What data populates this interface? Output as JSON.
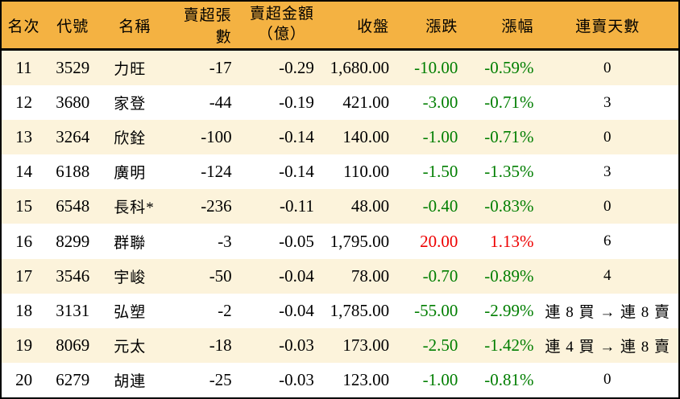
{
  "table": {
    "title": "institutional-net-sell-ranking",
    "columns": {
      "rank": "名次",
      "code": "代號",
      "name": "名稱",
      "sell_volume": "賣超張數",
      "sell_amount_line1": "賣超金額",
      "sell_amount_line2": "（億）",
      "close": "收盤",
      "change": "漲跌",
      "change_pct": "漲幅",
      "streak": "連賣天數"
    },
    "rows": [
      {
        "rank": "11",
        "code": "3529",
        "name": "力旺",
        "sell_volume": "-17",
        "sell_amount": "-0.29",
        "close": "1,680.00",
        "change": "-10.00",
        "change_pct": "-0.59%",
        "streak": "0",
        "trend": "down"
      },
      {
        "rank": "12",
        "code": "3680",
        "name": "家登",
        "sell_volume": "-44",
        "sell_amount": "-0.19",
        "close": "421.00",
        "change": "-3.00",
        "change_pct": "-0.71%",
        "streak": "3",
        "trend": "down"
      },
      {
        "rank": "13",
        "code": "3264",
        "name": "欣銓",
        "sell_volume": "-100",
        "sell_amount": "-0.14",
        "close": "140.00",
        "change": "-1.00",
        "change_pct": "-0.71%",
        "streak": "0",
        "trend": "down"
      },
      {
        "rank": "14",
        "code": "6188",
        "name": "廣明",
        "sell_volume": "-124",
        "sell_amount": "-0.14",
        "close": "110.00",
        "change": "-1.50",
        "change_pct": "-1.35%",
        "streak": "3",
        "trend": "down"
      },
      {
        "rank": "15",
        "code": "6548",
        "name": "長科*",
        "sell_volume": "-236",
        "sell_amount": "-0.11",
        "close": "48.00",
        "change": "-0.40",
        "change_pct": "-0.83%",
        "streak": "0",
        "trend": "down"
      },
      {
        "rank": "16",
        "code": "8299",
        "name": "群聯",
        "sell_volume": "-3",
        "sell_amount": "-0.05",
        "close": "1,795.00",
        "change": "20.00",
        "change_pct": "1.13%",
        "streak": "6",
        "trend": "up"
      },
      {
        "rank": "17",
        "code": "3546",
        "name": "宇峻",
        "sell_volume": "-50",
        "sell_amount": "-0.04",
        "close": "78.00",
        "change": "-0.70",
        "change_pct": "-0.89%",
        "streak": "4",
        "trend": "down"
      },
      {
        "rank": "18",
        "code": "3131",
        "name": "弘塑",
        "sell_volume": "-2",
        "sell_amount": "-0.04",
        "close": "1,785.00",
        "change": "-55.00",
        "change_pct": "-2.99%",
        "streak": "連 8 買 → 連 8 賣",
        "trend": "down"
      },
      {
        "rank": "19",
        "code": "8069",
        "name": "元太",
        "sell_volume": "-18",
        "sell_amount": "-0.03",
        "close": "173.00",
        "change": "-2.50",
        "change_pct": "-1.42%",
        "streak": "連 4 買 → 連 8 賣",
        "trend": "down"
      },
      {
        "rank": "20",
        "code": "6279",
        "name": "胡連",
        "sell_volume": "-25",
        "sell_amount": "-0.03",
        "close": "123.00",
        "change": "-1.00",
        "change_pct": "-0.81%",
        "streak": "0",
        "trend": "down"
      }
    ]
  },
  "colors": {
    "header_bg": "#F4B242",
    "row_alt_bg": "#FCF3DB",
    "row_bg": "#FFFFFF",
    "up_red": "#EE0000",
    "down_green": "#007E00",
    "text": "#000000",
    "border": "#000000"
  }
}
